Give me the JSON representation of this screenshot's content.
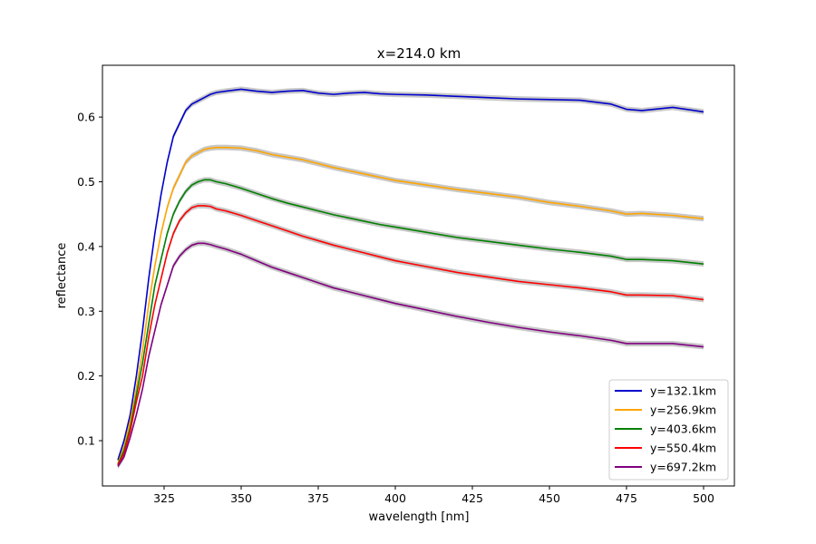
{
  "chart_data": {
    "type": "line",
    "title": "x=214.0 km",
    "xlabel": "wavelength [nm]",
    "ylabel": "reflectance",
    "xlim": [
      305,
      510
    ],
    "ylim": [
      0.03,
      0.68
    ],
    "xticks": [
      325,
      350,
      375,
      400,
      425,
      450,
      475,
      500
    ],
    "yticks": [
      0.1,
      0.2,
      0.3,
      0.4,
      0.5,
      0.6
    ],
    "grid": false,
    "legend_position": "lower-right",
    "uncertainty_band_color": "#c8c8c8",
    "series": [
      {
        "name": "y=132.1km",
        "color": "#0000cc",
        "x": [
          310,
          312,
          314,
          316,
          318,
          320,
          322,
          324,
          326,
          328,
          330,
          332,
          334,
          336,
          338,
          340,
          342,
          345,
          350,
          355,
          360,
          365,
          370,
          375,
          380,
          385,
          390,
          395,
          400,
          410,
          420,
          430,
          440,
          450,
          460,
          470,
          475,
          480,
          490,
          500
        ],
        "y": [
          0.07,
          0.1,
          0.14,
          0.2,
          0.27,
          0.35,
          0.42,
          0.48,
          0.53,
          0.57,
          0.59,
          0.61,
          0.62,
          0.625,
          0.63,
          0.635,
          0.638,
          0.64,
          0.643,
          0.64,
          0.638,
          0.64,
          0.641,
          0.637,
          0.635,
          0.637,
          0.638,
          0.636,
          0.635,
          0.634,
          0.632,
          0.63,
          0.628,
          0.627,
          0.626,
          0.62,
          0.612,
          0.61,
          0.615,
          0.608
        ]
      },
      {
        "name": "y=256.9km",
        "color": "#ffa500",
        "x": [
          310,
          312,
          314,
          316,
          318,
          320,
          322,
          324,
          326,
          328,
          330,
          332,
          334,
          336,
          338,
          340,
          342,
          345,
          350,
          355,
          360,
          365,
          370,
          375,
          380,
          385,
          390,
          395,
          400,
          410,
          420,
          430,
          440,
          450,
          460,
          470,
          475,
          480,
          490,
          500
        ],
        "y": [
          0.065,
          0.09,
          0.13,
          0.18,
          0.24,
          0.31,
          0.37,
          0.42,
          0.46,
          0.49,
          0.51,
          0.53,
          0.54,
          0.545,
          0.55,
          0.552,
          0.553,
          0.553,
          0.552,
          0.548,
          0.542,
          0.538,
          0.534,
          0.528,
          0.522,
          0.517,
          0.512,
          0.507,
          0.502,
          0.495,
          0.488,
          0.482,
          0.476,
          0.468,
          0.462,
          0.455,
          0.45,
          0.451,
          0.448,
          0.443
        ]
      },
      {
        "name": "y=403.6km",
        "color": "#008000",
        "x": [
          310,
          312,
          314,
          316,
          318,
          320,
          322,
          324,
          326,
          328,
          330,
          332,
          334,
          336,
          338,
          340,
          342,
          345,
          350,
          355,
          360,
          365,
          370,
          375,
          380,
          385,
          390,
          395,
          400,
          410,
          420,
          430,
          440,
          450,
          460,
          470,
          475,
          480,
          490,
          500
        ],
        "y": [
          0.063,
          0.085,
          0.12,
          0.17,
          0.22,
          0.28,
          0.34,
          0.38,
          0.42,
          0.45,
          0.47,
          0.485,
          0.495,
          0.5,
          0.503,
          0.503,
          0.5,
          0.497,
          0.49,
          0.482,
          0.474,
          0.467,
          0.461,
          0.455,
          0.449,
          0.444,
          0.439,
          0.434,
          0.43,
          0.422,
          0.414,
          0.408,
          0.402,
          0.396,
          0.391,
          0.385,
          0.38,
          0.38,
          0.378,
          0.373
        ]
      },
      {
        "name": "y=550.4km",
        "color": "#ff0000",
        "x": [
          310,
          312,
          314,
          316,
          318,
          320,
          322,
          324,
          326,
          328,
          330,
          332,
          334,
          336,
          338,
          340,
          342,
          345,
          350,
          355,
          360,
          365,
          370,
          375,
          380,
          385,
          390,
          395,
          400,
          410,
          420,
          430,
          440,
          450,
          460,
          470,
          475,
          480,
          490,
          500
        ],
        "y": [
          0.062,
          0.08,
          0.115,
          0.16,
          0.2,
          0.26,
          0.31,
          0.35,
          0.39,
          0.42,
          0.44,
          0.452,
          0.46,
          0.463,
          0.463,
          0.462,
          0.458,
          0.455,
          0.448,
          0.44,
          0.432,
          0.424,
          0.416,
          0.409,
          0.402,
          0.396,
          0.39,
          0.384,
          0.378,
          0.369,
          0.36,
          0.353,
          0.346,
          0.341,
          0.336,
          0.33,
          0.325,
          0.325,
          0.324,
          0.318
        ]
      },
      {
        "name": "y=697.2km",
        "color": "#800080",
        "x": [
          310,
          312,
          314,
          316,
          318,
          320,
          322,
          324,
          326,
          328,
          330,
          332,
          334,
          336,
          338,
          340,
          342,
          345,
          350,
          355,
          360,
          365,
          370,
          375,
          380,
          385,
          390,
          395,
          400,
          410,
          420,
          430,
          440,
          450,
          460,
          470,
          475,
          480,
          490,
          500
        ],
        "y": [
          0.06,
          0.075,
          0.105,
          0.14,
          0.18,
          0.23,
          0.27,
          0.31,
          0.34,
          0.37,
          0.385,
          0.395,
          0.402,
          0.405,
          0.405,
          0.403,
          0.4,
          0.396,
          0.388,
          0.378,
          0.368,
          0.36,
          0.352,
          0.344,
          0.336,
          0.33,
          0.324,
          0.318,
          0.312,
          0.302,
          0.292,
          0.283,
          0.275,
          0.268,
          0.262,
          0.255,
          0.25,
          0.25,
          0.25,
          0.245
        ]
      }
    ]
  }
}
